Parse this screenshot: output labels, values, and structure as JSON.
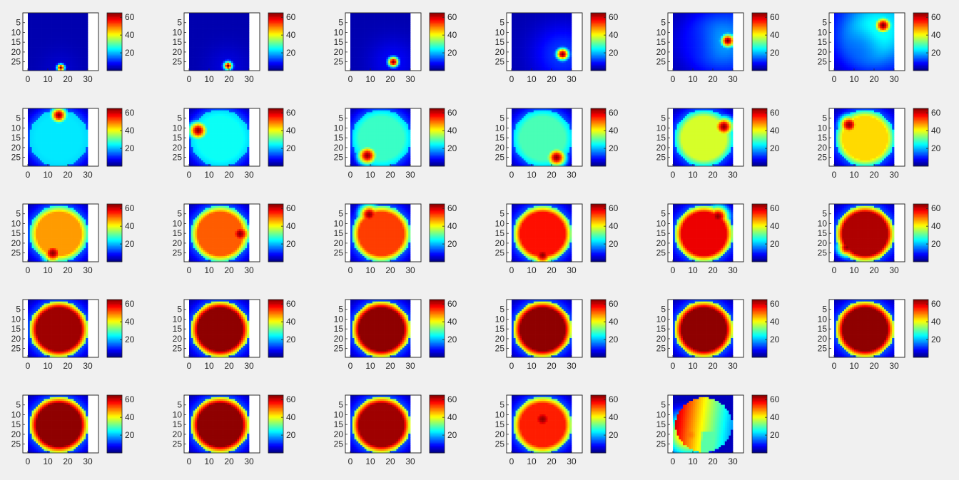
{
  "figure": {
    "background": "#f0f0f0",
    "colormap": "jet",
    "axis_color": "#262626",
    "plot_background": "#ffffff"
  },
  "chart_data": {
    "type": "heatmap",
    "layout": {
      "rows": 5,
      "cols": 6,
      "panel_count": 29
    },
    "x_ticks": [
      0,
      10,
      20,
      30
    ],
    "y_ticks": [
      5,
      10,
      15,
      20,
      25
    ],
    "colorbar_ticks": [
      20,
      40,
      60
    ],
    "clim": [
      0,
      65
    ],
    "grid": {
      "nx": 30,
      "ny": 30
    },
    "panels": [
      {
        "index": 1,
        "kind": "spot",
        "fill": 2,
        "ring": 0.0,
        "hot_x": 16,
        "hot_y": 28,
        "hot_value": 65,
        "hot_size": 1.4
      },
      {
        "index": 2,
        "kind": "spot",
        "fill": 3,
        "ring": 0.0,
        "hot_x": 19,
        "hot_y": 27,
        "hot_value": 65,
        "hot_size": 1.6
      },
      {
        "index": 3,
        "kind": "spot",
        "fill": 5,
        "ring": 0.0,
        "hot_x": 21,
        "hot_y": 25,
        "hot_value": 65,
        "hot_size": 1.9
      },
      {
        "index": 4,
        "kind": "spot",
        "fill": 9,
        "ring": 0.0,
        "hot_x": 25,
        "hot_y": 21,
        "hot_value": 65,
        "hot_size": 2.3
      },
      {
        "index": 5,
        "kind": "spot",
        "fill": 14,
        "ring": 0.05,
        "hot_x": 27,
        "hot_y": 14,
        "hot_value": 65,
        "hot_size": 2.6
      },
      {
        "index": 6,
        "kind": "spot",
        "fill": 20,
        "ring": 0.1,
        "hot_x": 24,
        "hot_y": 6,
        "hot_value": 65,
        "hot_size": 3.0
      },
      {
        "index": 7,
        "kind": "disc",
        "fill": 23,
        "ring": 0.25,
        "hot_x": 15,
        "hot_y": 3,
        "hot_value": 64,
        "hot_size": 3.0
      },
      {
        "index": 8,
        "kind": "disc",
        "fill": 25,
        "ring": 0.3,
        "hot_x": 4,
        "hot_y": 11,
        "hot_value": 64,
        "hot_size": 3.4
      },
      {
        "index": 9,
        "kind": "disc",
        "fill": 28,
        "ring": 0.3,
        "hot_x": 8,
        "hot_y": 24,
        "hot_value": 64,
        "hot_size": 3.5
      },
      {
        "index": 10,
        "kind": "disc",
        "fill": 29,
        "ring": 0.35,
        "hot_x": 22,
        "hot_y": 25,
        "hot_value": 64,
        "hot_size": 3.5
      },
      {
        "index": 11,
        "kind": "disc",
        "fill": 38,
        "ring": 0.45,
        "hot_x": 25,
        "hot_y": 9,
        "hot_value": 64,
        "hot_size": 3.6
      },
      {
        "index": 12,
        "kind": "disc",
        "fill": 43,
        "ring": 0.55,
        "hot_x": 7,
        "hot_y": 8,
        "hot_value": 64,
        "hot_size": 3.6
      },
      {
        "index": 13,
        "kind": "disc",
        "fill": 47,
        "ring": 0.6,
        "hot_x": 12,
        "hot_y": 25,
        "hot_value": 64,
        "hot_size": 3.8
      },
      {
        "index": 14,
        "kind": "disc",
        "fill": 51,
        "ring": 0.65,
        "hot_x": 25,
        "hot_y": 15,
        "hot_value": 64,
        "hot_size": 3.8
      },
      {
        "index": 15,
        "kind": "disc",
        "fill": 53,
        "ring": 0.7,
        "hot_x": 9,
        "hot_y": 5,
        "hot_value": 64,
        "hot_size": 3.8
      },
      {
        "index": 16,
        "kind": "disc",
        "fill": 56,
        "ring": 0.75,
        "hot_x": 15,
        "hot_y": 26,
        "hot_value": 64,
        "hot_size": 3.8
      },
      {
        "index": 17,
        "kind": "disc",
        "fill": 58,
        "ring": 0.8,
        "hot_x": 22,
        "hot_y": 6,
        "hot_value": 64,
        "hot_size": 4.0
      },
      {
        "index": 18,
        "kind": "disc",
        "fill": 62,
        "ring": 0.85,
        "hot_x": 6,
        "hot_y": 22,
        "hot_value": 64,
        "hot_size": 3.5
      },
      {
        "index": 19,
        "kind": "disc",
        "fill": 63,
        "ring": 0.9,
        "hot_x": 20,
        "hot_y": 15,
        "hot_value": 58,
        "hot_size": 5.0
      },
      {
        "index": 20,
        "kind": "disc",
        "fill": 64,
        "ring": 0.95,
        "hot_x": 15,
        "hot_y": 15,
        "hot_value": 64,
        "hot_size": 1.0
      },
      {
        "index": 21,
        "kind": "disc",
        "fill": 64,
        "ring": 0.95,
        "hot_x": 15,
        "hot_y": 15,
        "hot_value": 64,
        "hot_size": 1.0
      },
      {
        "index": 22,
        "kind": "disc",
        "fill": 64,
        "ring": 0.95,
        "hot_x": 15,
        "hot_y": 15,
        "hot_value": 64,
        "hot_size": 1.0
      },
      {
        "index": 23,
        "kind": "disc",
        "fill": 64,
        "ring": 0.95,
        "hot_x": 15,
        "hot_y": 15,
        "hot_value": 64,
        "hot_size": 1.0
      },
      {
        "index": 24,
        "kind": "disc",
        "fill": 64,
        "ring": 0.95,
        "hot_x": 15,
        "hot_y": 15,
        "hot_value": 64,
        "hot_size": 1.0
      },
      {
        "index": 25,
        "kind": "disc",
        "fill": 64,
        "ring": 0.95,
        "hot_x": 15,
        "hot_y": 15,
        "hot_value": 64,
        "hot_size": 1.0
      },
      {
        "index": 26,
        "kind": "disc",
        "fill": 64,
        "ring": 0.95,
        "hot_x": 15,
        "hot_y": 15,
        "hot_value": 64,
        "hot_size": 1.0
      },
      {
        "index": 27,
        "kind": "disc",
        "fill": 63,
        "ring": 0.95,
        "hot_x": 16,
        "hot_y": 17,
        "hot_value": 60,
        "hot_size": 4.0
      },
      {
        "index": 28,
        "kind": "disc",
        "fill": 55,
        "ring": 0.95,
        "hot_x": 15,
        "hot_y": 12,
        "hot_value": 64,
        "hot_size": 5.0
      },
      {
        "index": 29,
        "kind": "gradient",
        "fill": 45,
        "ring": 0.55,
        "hot_x": 7,
        "hot_y": 20,
        "hot_value": 50,
        "hot_size": 8.0
      }
    ]
  }
}
